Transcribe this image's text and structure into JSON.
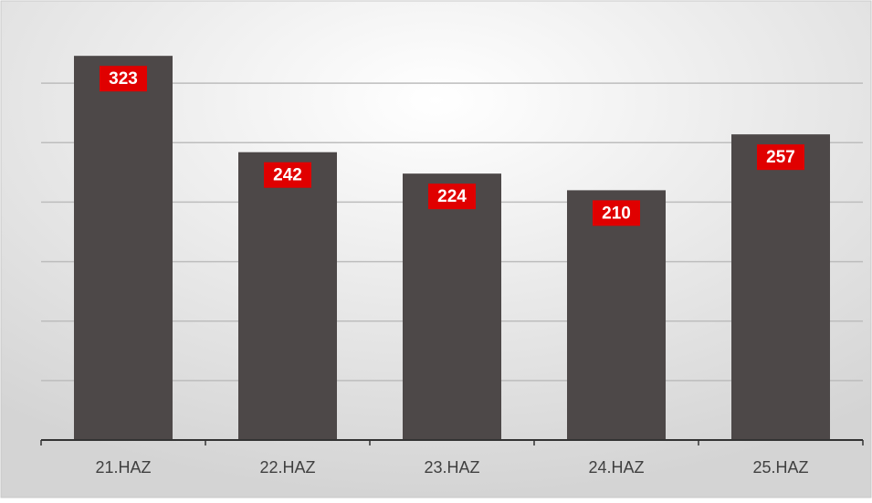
{
  "chart_data": {
    "type": "bar",
    "categories": [
      "21.HAZ",
      "22.HAZ",
      "23.HAZ",
      "24.HAZ",
      "25.HAZ"
    ],
    "values": [
      323,
      242,
      224,
      210,
      257
    ],
    "color": "#4d4848",
    "label_color": "#e00000",
    "ylim": [
      0,
      350
    ],
    "yticks": [
      50,
      100,
      150,
      200,
      250,
      300
    ],
    "grid": true
  }
}
